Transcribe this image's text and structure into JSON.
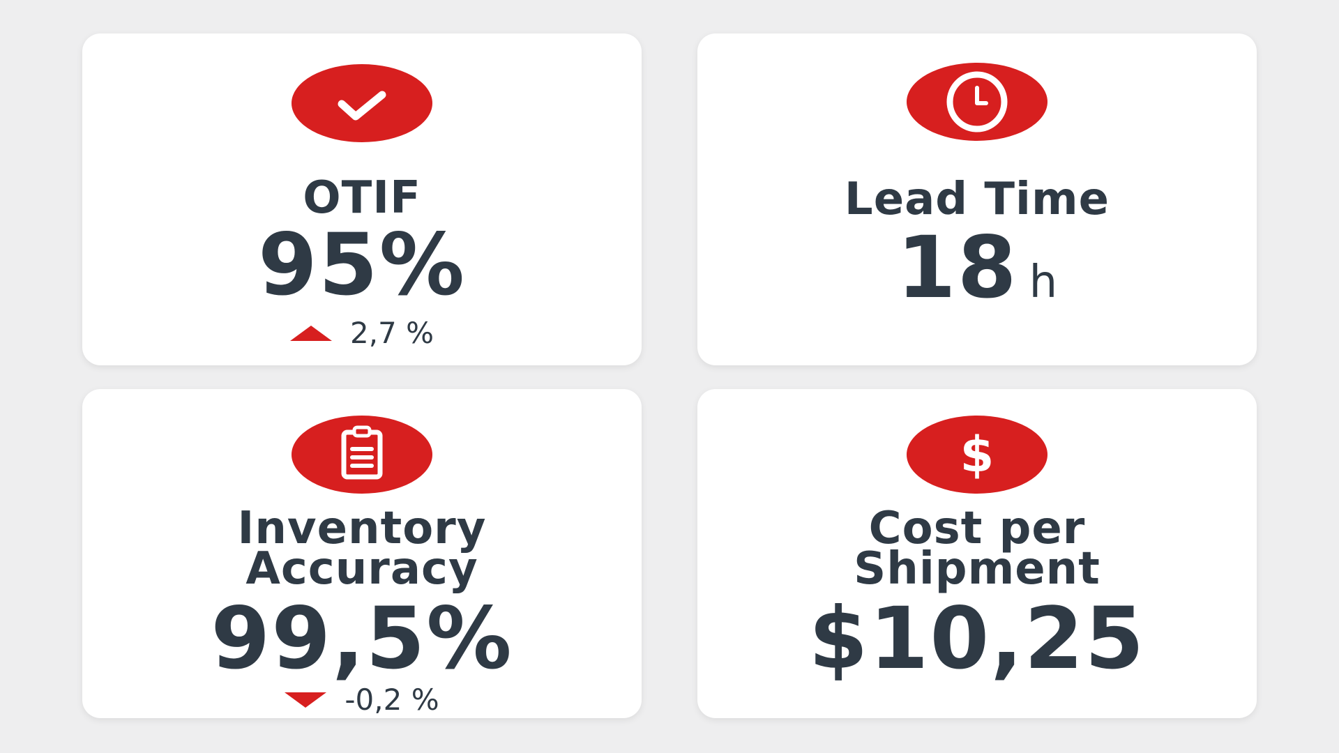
{
  "colors": {
    "accent": "#d71f1f",
    "text": "#2f3a45",
    "card_background": "#ffffff",
    "page_background": "#eeeeef"
  },
  "cards": [
    {
      "title": "OTIF",
      "value": "95%",
      "icon": "check-icon",
      "delta": {
        "direction": "up",
        "text": "2,7 %"
      }
    },
    {
      "title": "Lead Time",
      "value": "18",
      "unit": "h",
      "icon": "clock-icon"
    },
    {
      "title_line1": "Inventory",
      "title_line2": "Accuracy",
      "value": "99,5%",
      "icon": "clipboard-icon",
      "delta": {
        "direction": "down",
        "text": "-0,2 %"
      }
    },
    {
      "title_line1": "Cost per",
      "title_line2": "Shipment",
      "value": "$10,25",
      "icon": "dollar-icon"
    }
  ]
}
